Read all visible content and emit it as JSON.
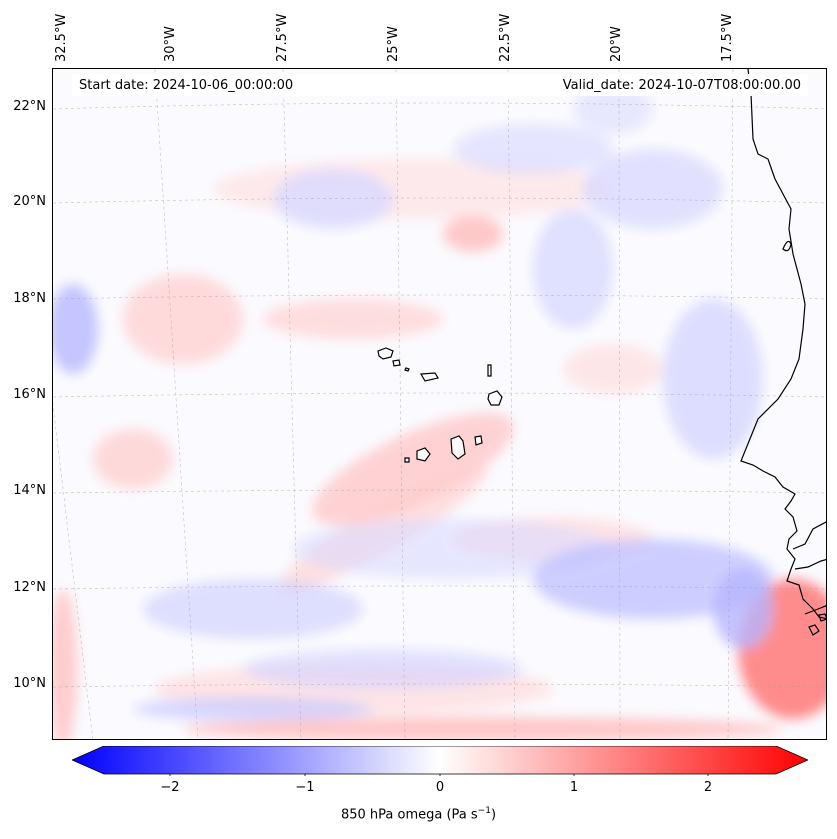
{
  "map": {
    "start_date": "Start date: 2024-10-06_00:00:00",
    "valid_date": "Valid_date: 2024-10-07T08:00:00.00",
    "lon_labels": [
      "32.5°W",
      "30°W",
      "27.5°W",
      "25°W",
      "22.5°W",
      "20°W",
      "17.5°W"
    ],
    "lat_labels": [
      "22°N",
      "20°N",
      "18°N",
      "16°N",
      "14°N",
      "12°N",
      "10°N"
    ]
  },
  "colorbar": {
    "tick_labels": [
      "−2",
      "−1",
      "0",
      "1",
      "2"
    ],
    "label_prefix": "850 hPa omega (Pa s",
    "label_exp": "−1",
    "label_suffix": ")",
    "color_min": "#0000ff",
    "color_mid": "#ffffff",
    "color_max": "#ff0000"
  }
}
